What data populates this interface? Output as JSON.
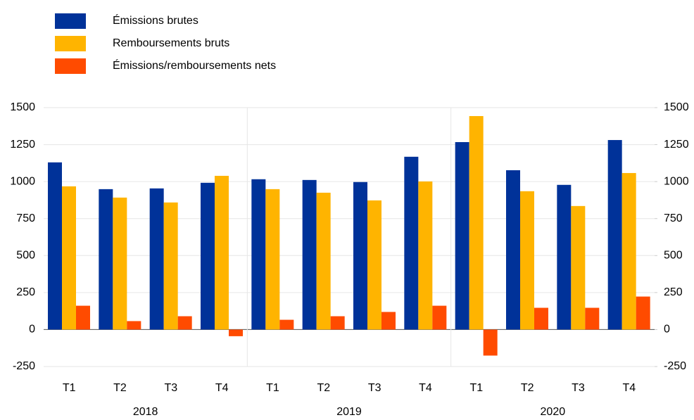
{
  "chart_data": {
    "type": "bar",
    "legend": "top-left",
    "categories": [
      "T1",
      "T2",
      "T3",
      "T4",
      "T1",
      "T2",
      "T3",
      "T4",
      "T1",
      "T2",
      "T3",
      "T4"
    ],
    "groups": [
      "2018",
      "2019",
      "2020"
    ],
    "series": [
      {
        "name": "Émissions brutes",
        "color": "#003299",
        "values": [
          1130,
          949,
          954,
          992,
          1016,
          1011,
          997,
          1168,
          1267,
          1077,
          978,
          1281
        ]
      },
      {
        "name": "Remboursements bruts",
        "color": "#ffb400",
        "values": [
          968,
          892,
          859,
          1039,
          949,
          925,
          873,
          1001,
          1443,
          935,
          835,
          1058
        ]
      },
      {
        "name": "Émissions/remboursements nets",
        "color": "#ff4b00",
        "values": [
          161,
          57,
          90,
          -45,
          66,
          90,
          119,
          161,
          -176,
          147,
          147,
          223
        ]
      }
    ],
    "ylim": [
      -250,
      1500
    ],
    "yticks": [
      -250,
      0,
      250,
      500,
      750,
      1000,
      1250,
      1500
    ],
    "y2lim": [
      -250,
      1500
    ],
    "y2ticks": [
      -250,
      0,
      250,
      500,
      750,
      1000,
      1250,
      1500
    ],
    "grid": true
  }
}
